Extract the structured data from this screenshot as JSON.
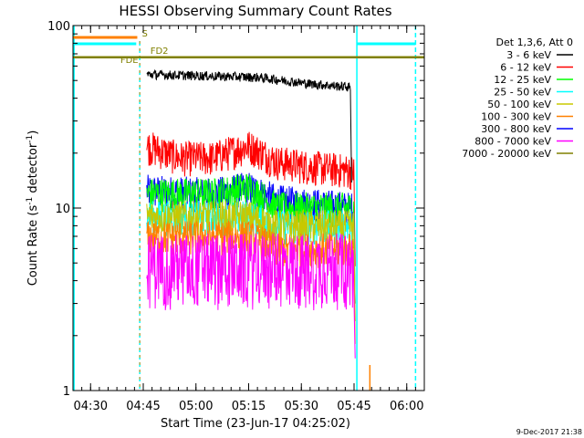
{
  "chart_data": {
    "type": "line",
    "title": "HESSI Observing Summary Count Rates",
    "xlabel": "Start Time (23-Jun-17 04:25:02)",
    "ylabel_main": "Count Rate (s",
    "ylabel_sup1": "-1",
    "ylabel_mid": " detector",
    "ylabel_sup2": "-1",
    "ylabel_end": ")",
    "yscale": "log",
    "ylim": [
      1,
      100
    ],
    "xlim_minutes": [
      0,
      100
    ],
    "x_ticks": [
      {
        "t": 5,
        "label": "04:30"
      },
      {
        "t": 20,
        "label": "04:45"
      },
      {
        "t": 35,
        "label": "05:00"
      },
      {
        "t": 50,
        "label": "05:15"
      },
      {
        "t": 65,
        "label": "05:30"
      },
      {
        "t": 80,
        "label": "05:45"
      },
      {
        "t": 95,
        "label": "06:00"
      }
    ],
    "y_ticks": [
      {
        "v": 1,
        "label": "1"
      },
      {
        "v": 10,
        "label": "10"
      },
      {
        "v": 100,
        "label": "100"
      }
    ],
    "legend_title": "Det 1,3,6, Att 0",
    "series": [
      {
        "name": "3 - 6 keV",
        "color": "#000000",
        "levels": [
          [
            21,
            54
          ],
          [
            53,
            52
          ],
          [
            67,
            48
          ],
          [
            79,
            46
          ]
        ]
      },
      {
        "name": "6 - 12 keV",
        "color": "#ff0000",
        "levels": [
          [
            21,
            22
          ],
          [
            30,
            19
          ],
          [
            40,
            19
          ],
          [
            50,
            22
          ],
          [
            58,
            18
          ],
          [
            67,
            17
          ],
          [
            80,
            16
          ]
        ]
      },
      {
        "name": "12 - 25 keV",
        "color": "#00ff00",
        "levels": [
          [
            21,
            12
          ],
          [
            40,
            12
          ],
          [
            50,
            13
          ],
          [
            58,
            10
          ],
          [
            80,
            10
          ]
        ]
      },
      {
        "name": "25 - 50 keV",
        "color": "#00ffff",
        "levels": [
          [
            21,
            9
          ],
          [
            50,
            9
          ],
          [
            58,
            8
          ],
          [
            80,
            8
          ]
        ]
      },
      {
        "name": "50 - 100 keV",
        "color": "#c8c800",
        "levels": [
          [
            21,
            9
          ],
          [
            50,
            9
          ],
          [
            58,
            8
          ],
          [
            80,
            8
          ]
        ]
      },
      {
        "name": "100 - 300 keV",
        "color": "#ff8000",
        "levels": [
          [
            21,
            7
          ],
          [
            50,
            7
          ],
          [
            58,
            6
          ],
          [
            80,
            6
          ]
        ]
      },
      {
        "name": "300 - 800 keV",
        "color": "#0000ff",
        "levels": [
          [
            21,
            12.5
          ],
          [
            40,
            12
          ],
          [
            50,
            13
          ],
          [
            58,
            11
          ],
          [
            80,
            10
          ]
        ]
      },
      {
        "name": "800 - 7000 keV",
        "color": "#ff00ff",
        "levels": [
          [
            21,
            5
          ],
          [
            50,
            5
          ],
          [
            58,
            5
          ],
          [
            80,
            5
          ]
        ]
      },
      {
        "name": "7000 - 20000 keV",
        "color": "#808000",
        "levels": [
          [
            0,
            67
          ],
          [
            100,
            67
          ]
        ]
      }
    ],
    "annotations": [
      {
        "label": "S",
        "color": "#808000"
      },
      {
        "label": "FD2",
        "color": "#808000"
      },
      {
        "label": "FDE",
        "color": "#808000"
      }
    ],
    "date_stamp": "9-Dec-2017 21:38"
  }
}
